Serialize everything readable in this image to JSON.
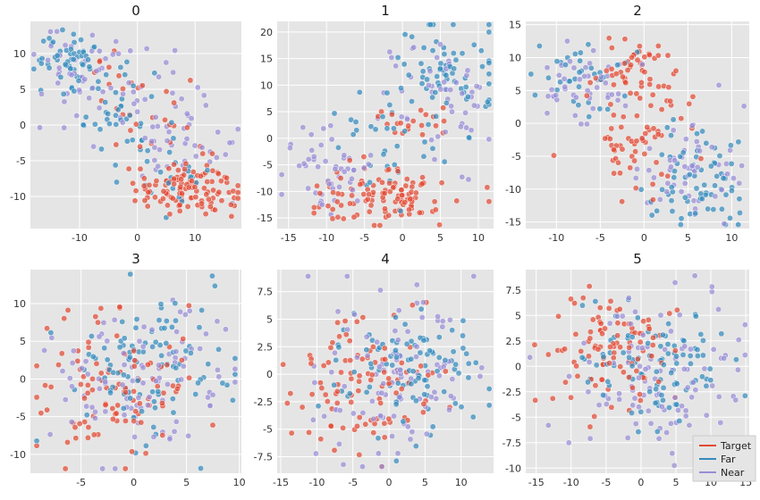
{
  "colors": {
    "Target": "#e24a33",
    "Far": "#348abd",
    "Near": "#988ed5",
    "panel_bg": "#e5e5e5",
    "grid": "#ffffff"
  },
  "legend": {
    "placement": "lower-right",
    "entries": [
      "Target",
      "Far",
      "Near"
    ]
  },
  "chart_data": [
    {
      "type": "scatter",
      "title": "0",
      "grid": true,
      "xlim": [
        -18.5,
        18
      ],
      "ylim": [
        -14.5,
        14.5
      ],
      "xticks": [
        -10,
        0,
        10
      ],
      "yticks": [
        -10,
        -5,
        0,
        5,
        10
      ],
      "clusters": {
        "Target": [
          {
            "cx": 9,
            "cy": -8.8,
            "sx": 4.5,
            "sy": 2,
            "n": 115
          },
          {
            "cx": 2,
            "cy": 2,
            "sx": 5,
            "sy": 4,
            "n": 25
          },
          {
            "cx": -6,
            "cy": 9,
            "sx": 2,
            "sy": 1.5,
            "n": 6
          }
        ],
        "Far": [
          {
            "cx": -12,
            "cy": 9.5,
            "sx": 3,
            "sy": 2,
            "n": 55
          },
          {
            "cx": -3,
            "cy": 1,
            "sx": 3.5,
            "sy": 3,
            "n": 40
          },
          {
            "cx": 8,
            "cy": -6,
            "sx": 4,
            "sy": 3,
            "n": 20
          }
        ],
        "Near": [
          {
            "cx": -9,
            "cy": 7,
            "sx": 4,
            "sy": 3.5,
            "n": 45
          },
          {
            "cx": 5,
            "cy": 1,
            "sx": 5,
            "sy": 3.5,
            "n": 45
          },
          {
            "cx": 10,
            "cy": -6,
            "sx": 4,
            "sy": 3,
            "n": 15
          }
        ]
      }
    },
    {
      "type": "scatter",
      "title": "1",
      "grid": true,
      "xlim": [
        -16.5,
        12
      ],
      "ylim": [
        -17,
        22
      ],
      "xticks": [
        -15,
        -10,
        -5,
        0,
        5,
        10
      ],
      "yticks": [
        -15,
        -10,
        -5,
        0,
        5,
        10,
        15,
        20
      ],
      "clusters": {
        "Target": [
          {
            "cx": -3,
            "cy": -11,
            "sx": 5,
            "sy": 2.5,
            "n": 110
          },
          {
            "cx": 1,
            "cy": 3,
            "sx": 3,
            "sy": 2,
            "n": 20
          }
        ],
        "Far": [
          {
            "cx": 6,
            "cy": 12,
            "sx": 3,
            "sy": 5,
            "n": 70
          },
          {
            "cx": -3,
            "cy": 0,
            "sx": 4,
            "sy": 5,
            "n": 30
          }
        ],
        "Near": [
          {
            "cx": -10,
            "cy": -6,
            "sx": 3,
            "sy": 4,
            "n": 50
          },
          {
            "cx": 5,
            "cy": 8,
            "sx": 4,
            "sy": 6,
            "n": 50
          }
        ]
      }
    },
    {
      "type": "scatter",
      "title": "2",
      "grid": true,
      "xlim": [
        -13.5,
        12
      ],
      "ylim": [
        -16,
        15.5
      ],
      "xticks": [
        -10,
        -5,
        0,
        5,
        10
      ],
      "yticks": [
        -15,
        -10,
        -5,
        0,
        5,
        10,
        15
      ],
      "clusters": {
        "Target": [
          {
            "cx": -1,
            "cy": 8,
            "sx": 2.5,
            "sy": 3,
            "n": 55
          },
          {
            "cx": -2,
            "cy": -4,
            "sx": 3,
            "sy": 3,
            "n": 40
          },
          {
            "cx": 3,
            "cy": 0,
            "sx": 3,
            "sy": 3,
            "n": 15
          }
        ],
        "Far": [
          {
            "cx": -7,
            "cy": 7,
            "sx": 3,
            "sy": 3,
            "n": 35
          },
          {
            "cx": 6,
            "cy": -8,
            "sx": 3,
            "sy": 4,
            "n": 70
          }
        ],
        "Near": [
          {
            "cx": -7,
            "cy": 6,
            "sx": 3,
            "sy": 3,
            "n": 45
          },
          {
            "cx": 6,
            "cy": -7,
            "sx": 3,
            "sy": 4,
            "n": 55
          }
        ]
      }
    },
    {
      "type": "scatter",
      "title": "3",
      "grid": true,
      "xlim": [
        -9.8,
        10.2
      ],
      "ylim": [
        -12.5,
        14.5
      ],
      "xticks": [
        -5,
        0,
        5,
        10
      ],
      "yticks": [
        -10,
        -5,
        0,
        5,
        10
      ],
      "clusters": {
        "Target": [
          {
            "cx": -2,
            "cy": -1,
            "sx": 4,
            "sy": 4.5,
            "n": 100
          }
        ],
        "Far": [
          {
            "cx": 1,
            "cy": 1,
            "sx": 3.8,
            "sy": 5,
            "n": 100
          }
        ],
        "Near": [
          {
            "cx": 1,
            "cy": 0,
            "sx": 4.5,
            "sy": 5,
            "n": 100
          }
        ]
      }
    },
    {
      "type": "scatter",
      "title": "4",
      "grid": true,
      "xlim": [
        -15.5,
        14.5
      ],
      "ylim": [
        -9,
        9.5
      ],
      "xticks": [
        -15,
        -10,
        -5,
        0,
        5,
        10
      ],
      "yticks": [
        -7.5,
        -5.0,
        -2.5,
        0.0,
        2.5,
        5.0,
        7.5
      ],
      "clusters": {
        "Target": [
          {
            "cx": -4,
            "cy": -1,
            "sx": 5,
            "sy": 3,
            "n": 100
          }
        ],
        "Far": [
          {
            "cx": 3,
            "cy": 0.5,
            "sx": 5,
            "sy": 3,
            "n": 100
          }
        ],
        "Near": [
          {
            "cx": 1,
            "cy": -0.5,
            "sx": 6,
            "sy": 3.5,
            "n": 100
          }
        ]
      }
    },
    {
      "type": "scatter",
      "title": "5",
      "grid": true,
      "xlim": [
        -16.5,
        15.5
      ],
      "ylim": [
        -10.5,
        9.5
      ],
      "xticks": [
        -15,
        -10,
        -5,
        0,
        5,
        10,
        15
      ],
      "yticks": [
        -10.0,
        -7.5,
        -5.0,
        -2.5,
        0.0,
        2.5,
        5.0,
        7.5
      ],
      "clusters": {
        "Target": [
          {
            "cx": -4,
            "cy": 2,
            "sx": 5,
            "sy": 3,
            "n": 100
          }
        ],
        "Far": [
          {
            "cx": 2,
            "cy": 0,
            "sx": 6,
            "sy": 3,
            "n": 100
          }
        ],
        "Near": [
          {
            "cx": 2,
            "cy": -1,
            "sx": 6,
            "sy": 4,
            "n": 100
          }
        ]
      }
    }
  ]
}
